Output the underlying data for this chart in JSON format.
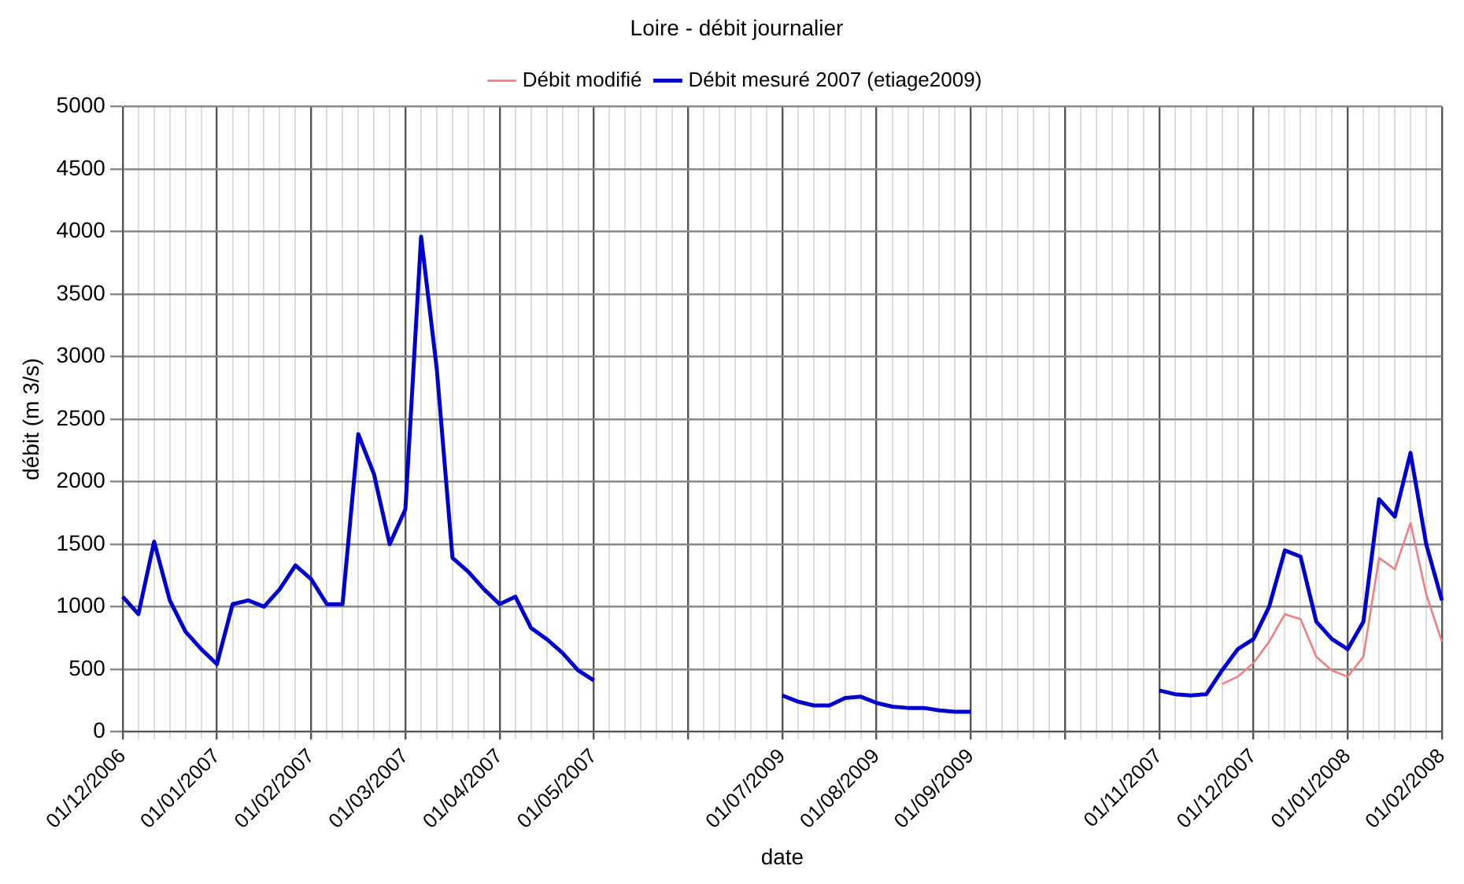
{
  "chart_data": {
    "type": "line",
    "title": "Loire - débit journalier",
    "xlabel": "date",
    "ylabel": "débit (m 3/s)",
    "categories": [
      "01/12/2006",
      null,
      null,
      null,
      null,
      null,
      "01/01/2007",
      null,
      null,
      null,
      null,
      null,
      "01/02/2007",
      null,
      null,
      null,
      null,
      null,
      "01/03/2007",
      null,
      null,
      null,
      null,
      null,
      "01/04/2007",
      null,
      null,
      null,
      null,
      null,
      "01/05/2007",
      null,
      null,
      null,
      null,
      null,
      null,
      null,
      null,
      null,
      null,
      null,
      "01/07/2009",
      null,
      null,
      null,
      null,
      null,
      "01/08/2009",
      null,
      null,
      null,
      null,
      null,
      "01/09/2009",
      null,
      null,
      null,
      null,
      null,
      null,
      null,
      null,
      null,
      null,
      null,
      "01/11/2007",
      null,
      null,
      null,
      null,
      null,
      "01/12/2007",
      null,
      null,
      null,
      null,
      null,
      "01/01/2008",
      null,
      null,
      null,
      null,
      null,
      "01/02/2008"
    ],
    "series": [
      {
        "name": "Débit modifié",
        "color": "#f08080",
        "values": [
          null,
          null,
          null,
          null,
          null,
          null,
          null,
          null,
          null,
          null,
          null,
          null,
          null,
          null,
          null,
          null,
          null,
          null,
          null,
          null,
          null,
          null,
          null,
          null,
          null,
          null,
          null,
          null,
          null,
          null,
          null,
          null,
          null,
          null,
          null,
          null,
          null,
          null,
          null,
          null,
          null,
          null,
          null,
          null,
          null,
          null,
          null,
          null,
          null,
          null,
          null,
          null,
          null,
          null,
          null,
          null,
          null,
          null,
          null,
          null,
          null,
          null,
          null,
          null,
          null,
          null,
          null,
          null,
          null,
          null,
          380,
          440,
          550,
          720,
          940,
          900,
          600,
          490,
          440,
          600,
          1390,
          1300,
          1670,
          1100,
          720
        ]
      },
      {
        "name": "Débit mesuré 2007 (etiage2009)",
        "color": "#0000cc",
        "values": [
          1080,
          940,
          1520,
          1050,
          800,
          660,
          540,
          1020,
          1050,
          1000,
          1140,
          1330,
          1220,
          1020,
          1020,
          2380,
          2060,
          1500,
          1780,
          3960,
          2900,
          1390,
          1280,
          1140,
          1020,
          1080,
          830,
          740,
          630,
          490,
          410,
          null,
          null,
          null,
          null,
          null,
          null,
          null,
          null,
          null,
          null,
          null,
          290,
          240,
          210,
          210,
          270,
          280,
          230,
          200,
          190,
          190,
          170,
          160,
          160,
          null,
          null,
          null,
          null,
          null,
          null,
          null,
          null,
          null,
          null,
          null,
          330,
          300,
          290,
          300,
          490,
          660,
          740,
          1000,
          1450,
          1400,
          880,
          740,
          660,
          880,
          1860,
          1720,
          2230,
          1500,
          1050
        ]
      }
    ],
    "ylim": [
      0,
      5000
    ],
    "yticks": [
      0,
      500,
      1000,
      1500,
      2000,
      2500,
      3000,
      3500,
      4000,
      4500,
      5000
    ],
    "grid": true,
    "legend": "top",
    "marker": "none",
    "line_style": "solid"
  }
}
